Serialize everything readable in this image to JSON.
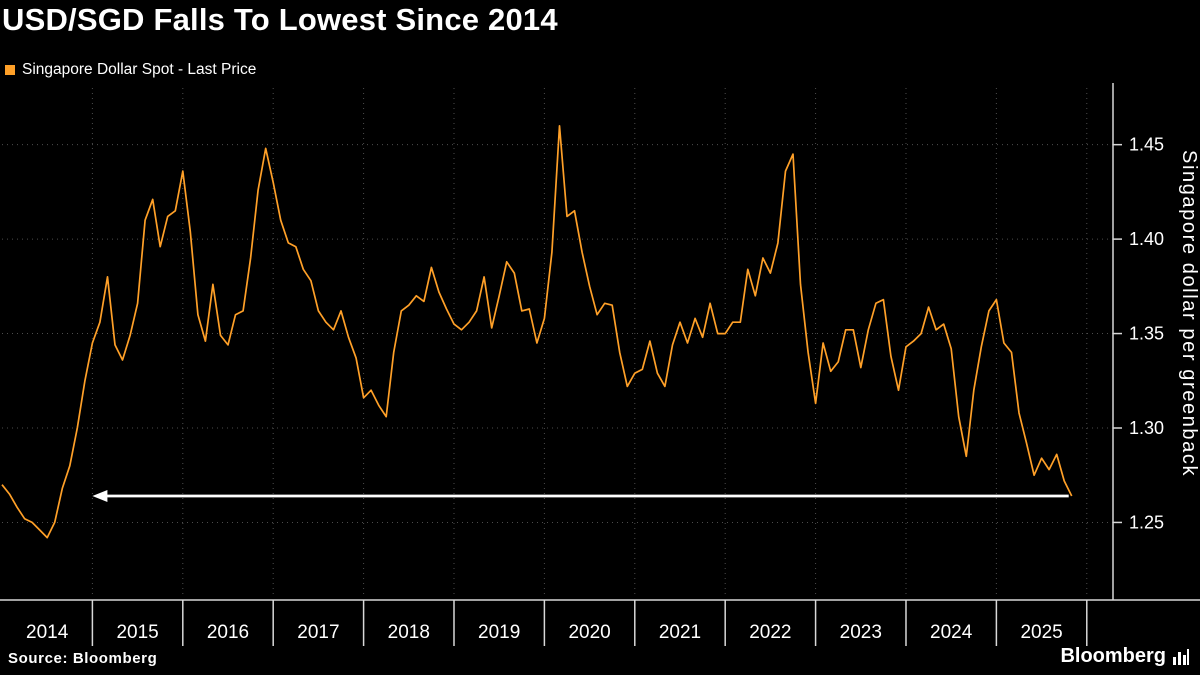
{
  "title": "USD/SGD Falls To Lowest Since 2014",
  "legend": {
    "label": "Singapore Dollar Spot - Last Price",
    "swatch_color": "#FFA028"
  },
  "axis": {
    "right_label": "Singapore dollar per greenback"
  },
  "footer": {
    "source": "Source: Bloomberg",
    "brand": "Bloomberg"
  },
  "chart_data": {
    "type": "line",
    "title": "USD/SGD Falls To Lowest Since 2014",
    "ylabel_right": "Singapore dollar per greenback",
    "legend_position": "top-left",
    "y_axis_side": "right",
    "grid": "dotted",
    "xlim": [
      2014,
      2026.29
    ],
    "ylim": [
      1.21,
      1.48
    ],
    "y_ticks": [
      1.25,
      1.3,
      1.35,
      1.4,
      1.45
    ],
    "x_tick_labels": [
      "2014",
      "2015",
      "2016",
      "2017",
      "2018",
      "2019",
      "2020",
      "2021",
      "2022",
      "2023",
      "2024",
      "2025"
    ],
    "series": [
      {
        "name": "Singapore Dollar Spot - Last Price",
        "color": "#FFA028",
        "start_year": 2014,
        "interval_months": 1,
        "values": [
          1.27,
          1.265,
          1.258,
          1.252,
          1.25,
          1.246,
          1.242,
          1.25,
          1.268,
          1.28,
          1.3,
          1.325,
          1.345,
          1.356,
          1.38,
          1.344,
          1.336,
          1.349,
          1.366,
          1.41,
          1.421,
          1.396,
          1.412,
          1.415,
          1.436,
          1.404,
          1.36,
          1.346,
          1.376,
          1.349,
          1.344,
          1.36,
          1.362,
          1.39,
          1.426,
          1.448,
          1.43,
          1.41,
          1.398,
          1.396,
          1.384,
          1.378,
          1.362,
          1.356,
          1.352,
          1.362,
          1.348,
          1.337,
          1.316,
          1.32,
          1.312,
          1.306,
          1.34,
          1.362,
          1.365,
          1.37,
          1.367,
          1.385,
          1.372,
          1.363,
          1.355,
          1.352,
          1.356,
          1.362,
          1.38,
          1.353,
          1.37,
          1.388,
          1.382,
          1.362,
          1.363,
          1.345,
          1.358,
          1.393,
          1.46,
          1.412,
          1.415,
          1.393,
          1.375,
          1.36,
          1.366,
          1.365,
          1.34,
          1.322,
          1.329,
          1.331,
          1.346,
          1.329,
          1.322,
          1.344,
          1.356,
          1.345,
          1.358,
          1.348,
          1.366,
          1.35,
          1.35,
          1.356,
          1.356,
          1.384,
          1.37,
          1.39,
          1.382,
          1.398,
          1.436,
          1.445,
          1.376,
          1.34,
          1.313,
          1.345,
          1.33,
          1.335,
          1.352,
          1.352,
          1.332,
          1.352,
          1.366,
          1.368,
          1.338,
          1.32,
          1.343,
          1.346,
          1.35,
          1.364,
          1.352,
          1.355,
          1.342,
          1.306,
          1.285,
          1.32,
          1.343,
          1.362,
          1.368,
          1.345,
          1.34,
          1.308,
          1.292,
          1.275,
          1.284,
          1.278,
          1.286,
          1.272,
          1.264
        ]
      }
    ],
    "annotation": {
      "type": "arrow-left",
      "y": 1.264,
      "x_from": 2015.0,
      "x_to": 2025.8,
      "color": "#FFFFFF"
    }
  }
}
